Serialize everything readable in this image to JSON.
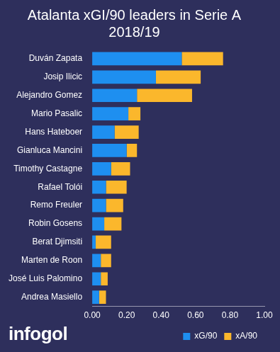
{
  "chart_data": {
    "type": "bar",
    "orientation": "horizontal",
    "stacked": true,
    "title": "Atalanta xGI/90 leaders in Serie A 2018/19",
    "categories": [
      "Duván Zapata",
      "Josip Ilicic",
      "Alejandro Gomez",
      "Mario Pasalic",
      "Hans Hateboer",
      "Gianluca Mancini",
      "Timothy Castagne",
      "Rafael Tolói",
      "Remo Freuler",
      "Robin Gosens",
      "Berat Djimsiti",
      "Marten de Roon",
      "José Luis Palomino",
      "Andrea Masiello"
    ],
    "series": [
      {
        "name": "xG/90",
        "color": "#1e8ff0",
        "values": [
          0.52,
          0.37,
          0.26,
          0.21,
          0.13,
          0.2,
          0.11,
          0.08,
          0.08,
          0.07,
          0.02,
          0.05,
          0.05,
          0.04
        ]
      },
      {
        "name": "xA/90",
        "color": "#fbb72c",
        "values": [
          0.24,
          0.26,
          0.32,
          0.07,
          0.14,
          0.06,
          0.11,
          0.12,
          0.1,
          0.1,
          0.09,
          0.06,
          0.04,
          0.04
        ]
      }
    ],
    "xlim": [
      0,
      1
    ],
    "xticks": [
      {
        "value": 0,
        "label": "0.00"
      },
      {
        "value": 0.2,
        "label": "0.20"
      },
      {
        "value": 0.4,
        "label": "0.40"
      },
      {
        "value": 0.6,
        "label": "0.60"
      },
      {
        "value": 0.8,
        "label": "0.80"
      },
      {
        "value": 1,
        "label": "1.00"
      }
    ],
    "grid": false,
    "legend": "bottom",
    "annotations": [
      "infogol"
    ]
  }
}
